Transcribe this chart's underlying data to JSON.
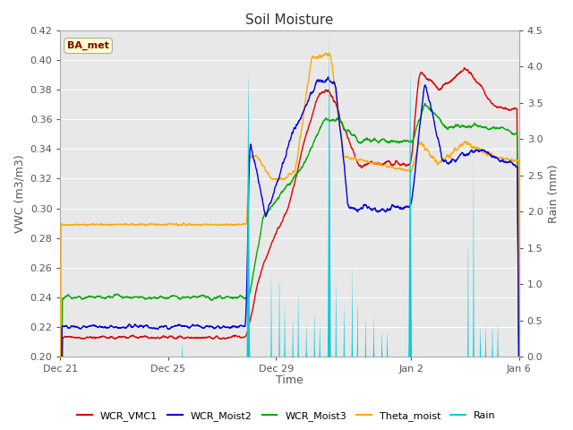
{
  "title": "Soil Moisture",
  "xlabel": "Time",
  "ylabel_left": "VWC (m3/m3)",
  "ylabel_right": "Rain (mm)",
  "ylim_left": [
    0.2,
    0.42
  ],
  "ylim_right": [
    0.0,
    4.5
  ],
  "fig_bg_color": "#ffffff",
  "plot_bg_color": "#e8e8e8",
  "grid_color": "#ffffff",
  "label_color": "#555555",
  "annotation_text": "BA_met",
  "annotation_color": "#8b0000",
  "annotation_bg": "#ffffcc",
  "annotation_edge": "#aaaaaa",
  "series_colors": {
    "WCR_VMC1": "#dd0000",
    "WCR_Moist2": "#0000dd",
    "WCR_Moist3": "#00aa00",
    "Theta_moist": "#ffaa00",
    "Rain": "#00ccdd"
  },
  "xtick_labels": [
    "Dec 21",
    "Dec 25",
    "Dec 29",
    "Jan 2",
    "Jan 6"
  ],
  "xtick_positions": [
    0,
    4,
    8,
    13,
    17
  ],
  "yticks_left": [
    0.2,
    0.22,
    0.24,
    0.26,
    0.28,
    0.3,
    0.32,
    0.34,
    0.36,
    0.38,
    0.4,
    0.42
  ],
  "yticks_right": [
    0.0,
    0.5,
    1.0,
    1.5,
    2.0,
    2.5,
    3.0,
    3.5,
    4.0,
    4.5
  ],
  "title_fontsize": 11,
  "axis_fontsize": 9,
  "tick_fontsize": 8,
  "legend_fontsize": 8
}
